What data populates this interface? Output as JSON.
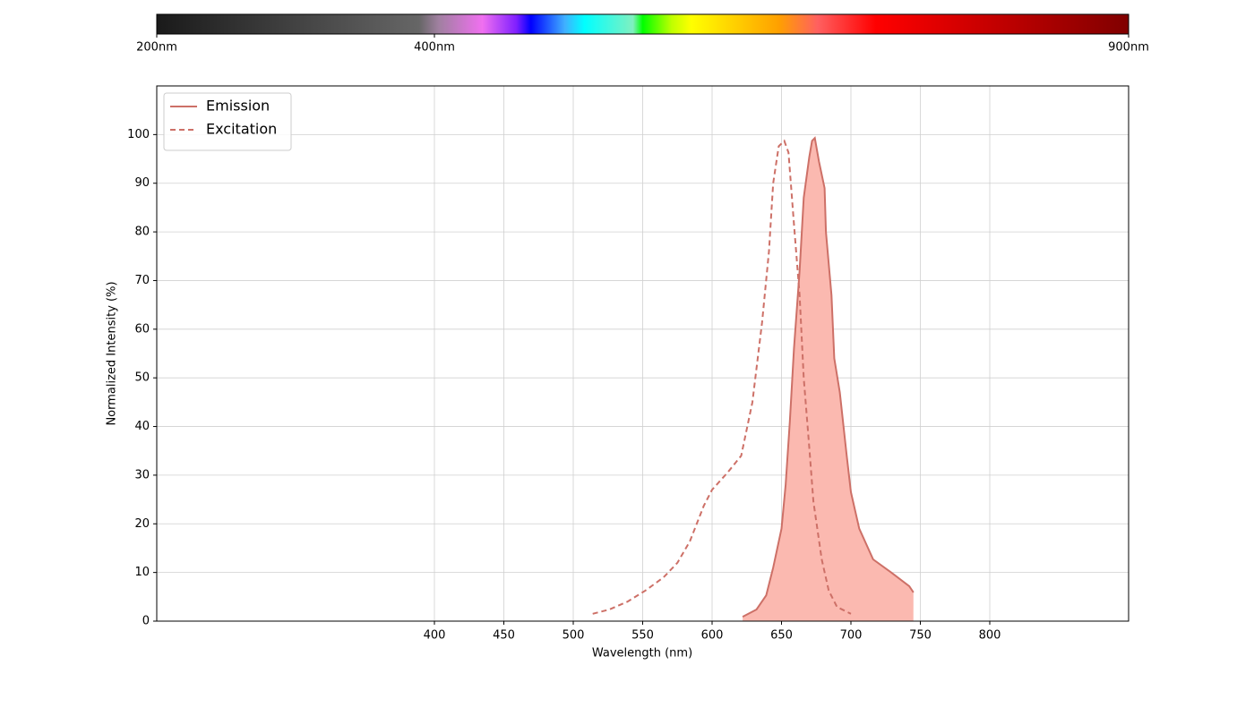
{
  "chart_data": {
    "type": "line",
    "xlabel": "Wavelength (nm)",
    "ylabel": "Normalized Intensity (%)",
    "xlim": [
      200,
      900
    ],
    "ylim": [
      0,
      110
    ],
    "xticks": [
      400,
      450,
      500,
      550,
      600,
      650,
      700,
      750,
      800
    ],
    "yticks": [
      0,
      10,
      20,
      30,
      40,
      50,
      60,
      70,
      80,
      90,
      100
    ],
    "grid": true,
    "legend": "upper left",
    "colorbar_ticks": [
      {
        "value": 200,
        "label": "200nm"
      },
      {
        "value": 400,
        "label": "400nm"
      },
      {
        "value": 900,
        "label": "900nm"
      }
    ],
    "series": [
      {
        "name": "Emission",
        "color": "#cd7067",
        "fill_color": "#fbb9b0",
        "linestyle": "solid",
        "fill": true,
        "x": [
          622,
          632,
          639,
          644,
          650,
          653,
          656,
          659,
          663,
          666,
          670,
          672,
          674,
          677,
          681,
          682,
          686,
          688,
          692,
          697,
          700,
          706,
          716,
          729,
          742,
          745
        ],
        "values": [
          0.9,
          2.4,
          5.3,
          11,
          19,
          28,
          41,
          56,
          72,
          87,
          95.4,
          98.7,
          99.3,
          94.5,
          89,
          80,
          67,
          54,
          47,
          34,
          26.5,
          19,
          12.7,
          10,
          7.2,
          5.9
        ]
      },
      {
        "name": "Excitation",
        "color": "#cd7067",
        "linestyle": "dashed",
        "fill": false,
        "x": [
          514,
          526,
          539,
          552,
          565,
          575,
          584,
          594,
          600,
          611,
          621,
          629,
          636,
          641,
          644,
          648,
          652,
          655,
          659,
          663,
          666,
          670,
          673,
          679,
          684,
          690,
          700
        ],
        "values": [
          1.5,
          2.4,
          4,
          6.3,
          9,
          12,
          16.4,
          23.7,
          27,
          30.5,
          34,
          45,
          61.4,
          76,
          90,
          97.6,
          98.7,
          96.3,
          81.6,
          67,
          50,
          35.7,
          24.6,
          12.7,
          6.3,
          2.9,
          1.5
        ]
      }
    ]
  }
}
